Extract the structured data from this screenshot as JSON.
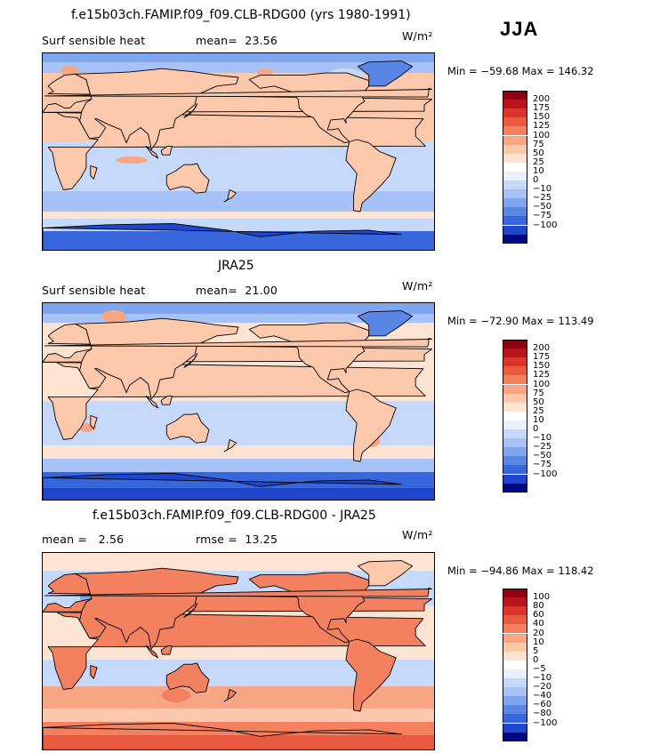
{
  "season": "JJA",
  "units": "W/m²",
  "colors": {
    "warm": [
      "#ffffff",
      "#fde4d2",
      "#fbc8ab",
      "#f8a583",
      "#f3805f",
      "#ea5a40",
      "#d9352a",
      "#b8141c",
      "#8f0010"
    ],
    "cool": [
      "#e9f1fd",
      "#c6d9fb",
      "#a6c2f6",
      "#7fa5ef",
      "#5a86e6",
      "#3766dd",
      "#1f46cc",
      "#0d27a8",
      "#000a80"
    ],
    "land_outline": "#000000"
  },
  "chart_data": [
    {
      "type": "heatmap",
      "panel": "model",
      "title": "f.e15b03ch.FAMIP.f09_f09.CLB-RDG00 (yrs 1980-1991)",
      "left_label": "Surf sensible heat",
      "stat_label": "mean=",
      "stat_value": "23.56",
      "units": "W/m²",
      "min_label": "Min = ",
      "min_value": "−59.68",
      "max_label": "Max = ",
      "max_value": "146.32",
      "colorbar": [
        "200",
        "175",
        "150",
        "125",
        "100",
        "75",
        "50",
        "25",
        "10",
        "0",
        "−10",
        "−25",
        "−50",
        "−75",
        "−100"
      ],
      "colorbar_colors": [
        "#8f0010",
        "#b8141c",
        "#d9352a",
        "#ea5a40",
        "#f3805f",
        "#f8a583",
        "#fbc8ab",
        "#fde4d2",
        "#ffffff",
        "#e9f1fd",
        "#c6d9fb",
        "#a6c2f6",
        "#7fa5ef",
        "#5a86e6",
        "#3766dd",
        "#1f46cc",
        "#000a80"
      ]
    },
    {
      "type": "heatmap",
      "panel": "obs",
      "title": "JRA25",
      "left_label": "Surf sensible heat",
      "stat_label": "mean=",
      "stat_value": "21.00",
      "units": "W/m²",
      "min_label": "Min = ",
      "min_value": "−72.90",
      "max_label": "Max = ",
      "max_value": "113.49",
      "colorbar": [
        "200",
        "175",
        "150",
        "125",
        "100",
        "75",
        "50",
        "25",
        "10",
        "0",
        "−10",
        "−25",
        "−50",
        "−75",
        "−100"
      ],
      "colorbar_colors": [
        "#8f0010",
        "#b8141c",
        "#d9352a",
        "#ea5a40",
        "#f3805f",
        "#f8a583",
        "#fbc8ab",
        "#fde4d2",
        "#ffffff",
        "#e9f1fd",
        "#c6d9fb",
        "#a6c2f6",
        "#7fa5ef",
        "#5a86e6",
        "#3766dd",
        "#1f46cc",
        "#000a80"
      ]
    },
    {
      "type": "heatmap",
      "panel": "diff",
      "title": "f.e15b03ch.FAMIP.f09_f09.CLB-RDG00 - JRA25",
      "left_label": "mean =",
      "left_value": "2.56",
      "stat_label": "rmse =",
      "stat_value": "13.25",
      "units": "W/m²",
      "min_label": "Min = ",
      "min_value": "−94.86",
      "max_label": "Max = ",
      "max_value": "118.42",
      "colorbar": [
        "100",
        "80",
        "60",
        "40",
        "20",
        "10",
        "5",
        "0",
        "−5",
        "−10",
        "−20",
        "−40",
        "−60",
        "−80",
        "−100"
      ],
      "colorbar_colors": [
        "#8f0010",
        "#b8141c",
        "#d9352a",
        "#ea5a40",
        "#f3805f",
        "#f8a583",
        "#fbc8ab",
        "#fde4d2",
        "#ffffff",
        "#e9f1fd",
        "#c6d9fb",
        "#a6c2f6",
        "#7fa5ef",
        "#5a86e6",
        "#3766dd",
        "#1f46cc",
        "#000a80"
      ]
    }
  ]
}
